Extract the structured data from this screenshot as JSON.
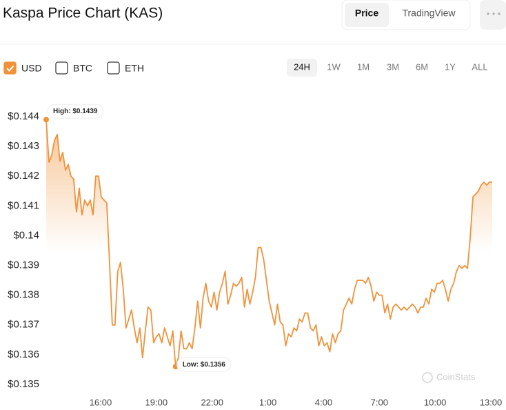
{
  "header": {
    "title": "Kaspa Price Chart (KAS)",
    "tabs": [
      {
        "label": "Price",
        "active": true
      },
      {
        "label": "TradingView",
        "active": false
      }
    ]
  },
  "currencies": [
    {
      "label": "USD",
      "checked": true
    },
    {
      "label": "BTC",
      "checked": false
    },
    {
      "label": "ETH",
      "checked": false
    }
  ],
  "ranges": [
    {
      "label": "24H",
      "active": true
    },
    {
      "label": "1W",
      "active": false
    },
    {
      "label": "1M",
      "active": false
    },
    {
      "label": "3M",
      "active": false
    },
    {
      "label": "6M",
      "active": false
    },
    {
      "label": "1Y",
      "active": false
    },
    {
      "label": "ALL",
      "active": false
    }
  ],
  "chart_data": {
    "type": "line",
    "color": "#f0923a",
    "ylim": [
      0.135,
      0.144
    ],
    "yticks": [
      {
        "value": 0.135,
        "label": "$0.135"
      },
      {
        "value": 0.136,
        "label": "$0.136"
      },
      {
        "value": 0.137,
        "label": "$0.137"
      },
      {
        "value": 0.138,
        "label": "$0.138"
      },
      {
        "value": 0.139,
        "label": "$0.139"
      },
      {
        "value": 0.14,
        "label": "$0.14"
      },
      {
        "value": 0.141,
        "label": "$0.141"
      },
      {
        "value": 0.142,
        "label": "$0.142"
      },
      {
        "value": 0.143,
        "label": "$0.143"
      },
      {
        "value": 0.144,
        "label": "$0.144"
      }
    ],
    "x_labels": [
      "16:00",
      "19:00",
      "22:00",
      "1:00",
      "4:00",
      "7:00",
      "10:00",
      "13:00"
    ],
    "values": [
      0.1439,
      0.14247,
      0.1427,
      0.1432,
      0.1434,
      0.1425,
      0.1428,
      0.1422,
      0.1424,
      0.142,
      0.1419,
      0.1408,
      0.1416,
      0.1407,
      0.1412,
      0.141,
      0.1412,
      0.1407,
      0.142,
      0.142,
      0.1413,
      0.1412,
      0.1411,
      0.1391,
      0.137,
      0.137,
      0.1388,
      0.1391,
      0.1382,
      0.1369,
      0.1372,
      0.1375,
      0.1369,
      0.1364,
      0.1369,
      0.1359,
      0.1368,
      0.1376,
      0.1375,
      0.1364,
      0.1366,
      0.1367,
      0.1364,
      0.1369,
      0.1366,
      0.1363,
      0.1368,
      0.1356,
      0.1359,
      0.1368,
      0.1362,
      0.1362,
      0.1364,
      0.1362,
      0.1369,
      0.1378,
      0.1369,
      0.1379,
      0.1384,
      0.1378,
      0.1376,
      0.1381,
      0.1375,
      0.1381,
      0.1384,
      0.1388,
      0.1377,
      0.138,
      0.1384,
      0.1383,
      0.1384,
      0.1386,
      0.1376,
      0.1382,
      0.1377,
      0.1381,
      0.1386,
      0.1396,
      0.1396,
      0.1392,
      0.1385,
      0.1378,
      0.1374,
      0.137,
      0.1377,
      0.1371,
      0.137,
      0.1363,
      0.1367,
      0.1366,
      0.1369,
      0.1368,
      0.1372,
      0.1371,
      0.1374,
      0.1374,
      0.1369,
      0.1368,
      0.137,
      0.1363,
      0.1366,
      0.1363,
      0.1364,
      0.1361,
      0.1367,
      0.1364,
      0.1367,
      0.1368,
      0.1375,
      0.1377,
      0.1379,
      0.1377,
      0.1382,
      0.1385,
      0.1385,
      0.1385,
      0.1384,
      0.1386,
      0.1383,
      0.1378,
      0.1381,
      0.138,
      0.138,
      0.1374,
      0.1377,
      0.1372,
      0.1376,
      0.1377,
      0.1376,
      0.1375,
      0.1376,
      0.1375,
      0.1376,
      0.1377,
      0.1376,
      0.1374,
      0.1376,
      0.1376,
      0.1379,
      0.1377,
      0.1382,
      0.1381,
      0.1384,
      0.1384,
      0.1385,
      0.1382,
      0.1378,
      0.1382,
      0.1384,
      0.1388,
      0.139,
      0.1389,
      0.139,
      0.1389,
      0.1399,
      0.1413,
      0.1414,
      0.1415,
      0.1417,
      0.1418,
      0.1417,
      0.1418,
      0.1418
    ],
    "high": {
      "label": "High: $0.1439",
      "value": 0.1439
    },
    "low": {
      "label": "Low: $0.1356",
      "value": 0.1356
    },
    "watermark": "CoinStats"
  }
}
